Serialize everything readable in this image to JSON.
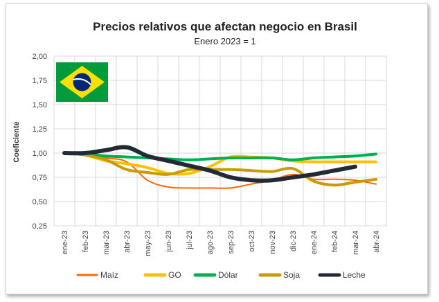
{
  "chart_data": {
    "type": "line",
    "title": "Precios relativos que afectan negocio en Brasil",
    "subtitle": "Enero 2023 = 1",
    "xlabel": "",
    "ylabel": "Coeficiente",
    "ylim": [
      0.25,
      2.0
    ],
    "yticks": [
      "0,25",
      "0,50",
      "0,75",
      "1,00",
      "1,25",
      "1,50",
      "1,75",
      "2,00"
    ],
    "ytick_values": [
      0.25,
      0.5,
      0.75,
      1.0,
      1.25,
      1.5,
      1.75,
      2.0
    ],
    "categories": [
      "ene-23",
      "feb-23",
      "mar-23",
      "abr-23",
      "may-23",
      "jun-23",
      "jul-23",
      "ago-23",
      "sep-23",
      "oct-23",
      "nov-23",
      "dic-23",
      "ene-24",
      "feb-24",
      "mar-24",
      "abr-24"
    ],
    "grid": true,
    "legend_position": "bottom",
    "series": [
      {
        "name": "Maíz",
        "color": "#FF6600",
        "width": 2,
        "values": [
          1.0,
          0.99,
          0.95,
          0.91,
          0.72,
          0.65,
          0.64,
          0.64,
          0.64,
          0.68,
          0.72,
          0.78,
          0.73,
          0.73,
          0.72,
          0.68
        ]
      },
      {
        "name": "GO",
        "color": "#FFC000",
        "width": 4,
        "values": [
          1.0,
          0.98,
          0.92,
          0.89,
          0.85,
          0.79,
          0.79,
          0.86,
          0.96,
          0.96,
          0.95,
          0.92,
          0.91,
          0.91,
          0.91,
          0.91
        ]
      },
      {
        "name": "Dólar",
        "color": "#00B050",
        "width": 4,
        "values": [
          1.0,
          0.99,
          0.97,
          0.96,
          0.95,
          0.94,
          0.93,
          0.94,
          0.95,
          0.95,
          0.95,
          0.93,
          0.95,
          0.96,
          0.97,
          0.99
        ]
      },
      {
        "name": "Soja",
        "color": "#C89B00",
        "width": 4,
        "values": [
          1.0,
          0.98,
          0.93,
          0.83,
          0.8,
          0.78,
          0.83,
          0.83,
          0.83,
          0.82,
          0.81,
          0.84,
          0.71,
          0.67,
          0.7,
          0.73
        ]
      },
      {
        "name": "Leche",
        "color": "#222A35",
        "width": 6,
        "values": [
          1.0,
          1.0,
          1.03,
          1.06,
          0.97,
          0.92,
          0.87,
          0.82,
          0.75,
          0.72,
          0.72,
          0.75,
          0.78,
          0.82,
          0.86,
          null
        ]
      }
    ],
    "annotation": "Brazil flag image"
  }
}
